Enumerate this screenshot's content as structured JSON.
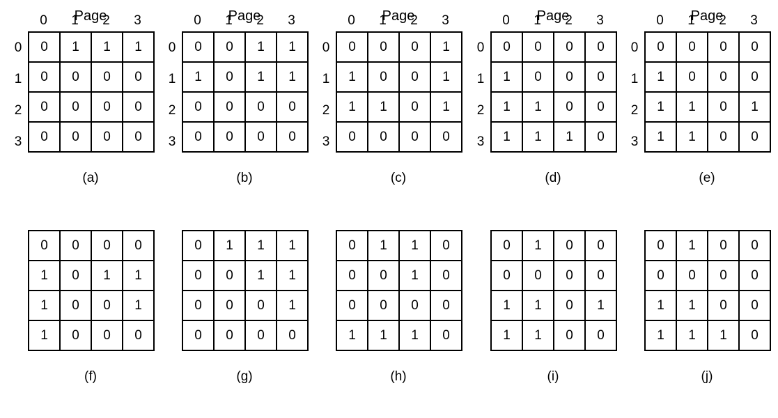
{
  "header_label": "Page",
  "col_labels": [
    "0",
    "1",
    "2",
    "3"
  ],
  "row_labels": [
    "0",
    "1",
    "2",
    "3"
  ],
  "matrices": [
    {
      "id": "a",
      "caption": "(a)",
      "cells": [
        [
          0,
          1,
          1,
          1
        ],
        [
          0,
          0,
          0,
          0
        ],
        [
          0,
          0,
          0,
          0
        ],
        [
          0,
          0,
          0,
          0
        ]
      ]
    },
    {
      "id": "b",
      "caption": "(b)",
      "cells": [
        [
          0,
          0,
          1,
          1
        ],
        [
          1,
          0,
          1,
          1
        ],
        [
          0,
          0,
          0,
          0
        ],
        [
          0,
          0,
          0,
          0
        ]
      ]
    },
    {
      "id": "c",
      "caption": "(c)",
      "cells": [
        [
          0,
          0,
          0,
          1
        ],
        [
          1,
          0,
          0,
          1
        ],
        [
          1,
          1,
          0,
          1
        ],
        [
          0,
          0,
          0,
          0
        ]
      ]
    },
    {
      "id": "d",
      "caption": "(d)",
      "cells": [
        [
          0,
          0,
          0,
          0
        ],
        [
          1,
          0,
          0,
          0
        ],
        [
          1,
          1,
          0,
          0
        ],
        [
          1,
          1,
          1,
          0
        ]
      ]
    },
    {
      "id": "e",
      "caption": "(e)",
      "cells": [
        [
          0,
          0,
          0,
          0
        ],
        [
          1,
          0,
          0,
          0
        ],
        [
          1,
          1,
          0,
          1
        ],
        [
          1,
          1,
          0,
          0
        ]
      ]
    },
    {
      "id": "f",
      "caption": "(f)",
      "cells": [
        [
          0,
          0,
          0,
          0
        ],
        [
          1,
          0,
          1,
          1
        ],
        [
          1,
          0,
          0,
          1
        ],
        [
          1,
          0,
          0,
          0
        ]
      ]
    },
    {
      "id": "g",
      "caption": "(g)",
      "cells": [
        [
          0,
          1,
          1,
          1
        ],
        [
          0,
          0,
          1,
          1
        ],
        [
          0,
          0,
          0,
          1
        ],
        [
          0,
          0,
          0,
          0
        ]
      ]
    },
    {
      "id": "h",
      "caption": "(h)",
      "cells": [
        [
          0,
          1,
          1,
          0
        ],
        [
          0,
          0,
          1,
          0
        ],
        [
          0,
          0,
          0,
          0
        ],
        [
          1,
          1,
          1,
          0
        ]
      ]
    },
    {
      "id": "i",
      "caption": "(i)",
      "cells": [
        [
          0,
          1,
          0,
          0
        ],
        [
          0,
          0,
          0,
          0
        ],
        [
          1,
          1,
          0,
          1
        ],
        [
          1,
          1,
          0,
          0
        ]
      ]
    },
    {
      "id": "j",
      "caption": "(j)",
      "cells": [
        [
          0,
          1,
          0,
          0
        ],
        [
          0,
          0,
          0,
          0
        ],
        [
          1,
          1,
          0,
          0
        ],
        [
          1,
          1,
          1,
          0
        ]
      ]
    }
  ]
}
